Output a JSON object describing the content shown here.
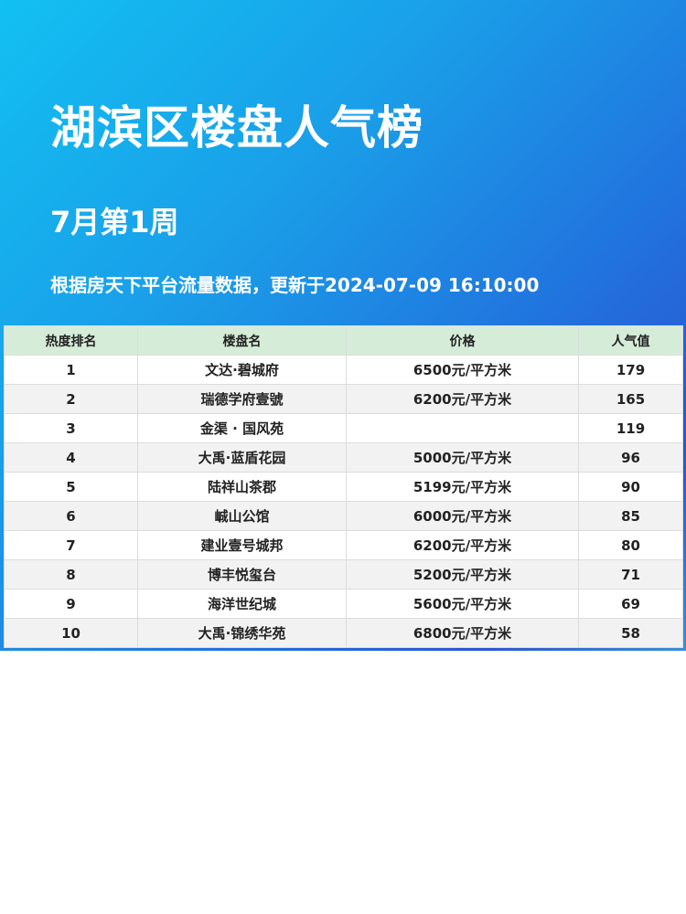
{
  "header": {
    "title": "湖滨区楼盘人气榜",
    "subtitle": "7月第1周",
    "update_note": "根据房天下平台流量数据，更新于2024-07-09 16:10:00"
  },
  "table": {
    "columns": [
      "热度排名",
      "楼盘名",
      "价格",
      "人气值"
    ],
    "rows": [
      [
        "1",
        "文达·碧城府",
        "6500元/平方米",
        "179"
      ],
      [
        "2",
        "瑞德学府壹號",
        "6200元/平方米",
        "165"
      ],
      [
        "3",
        "金渠 · 国风苑",
        "",
        "119"
      ],
      [
        "4",
        "大禹·蓝盾花园",
        "5000元/平方米",
        "96"
      ],
      [
        "5",
        "陆祥山茶郡",
        "5199元/平方米",
        "90"
      ],
      [
        "6",
        "峸山公馆",
        "6000元/平方米",
        "85"
      ],
      [
        "7",
        "建业壹号城邦",
        "6200元/平方米",
        "80"
      ],
      [
        "8",
        "博丰悦玺台",
        "5200元/平方米",
        "71"
      ],
      [
        "9",
        "海洋世纪城",
        "5600元/平方米",
        "69"
      ],
      [
        "10",
        "大禹·锦绣华苑",
        "6800元/平方米",
        "58"
      ]
    ]
  },
  "colors": {
    "header_row": "#d5ecd9",
    "gradient_start": "#12c0f2",
    "gradient_end": "#2a56d0"
  }
}
